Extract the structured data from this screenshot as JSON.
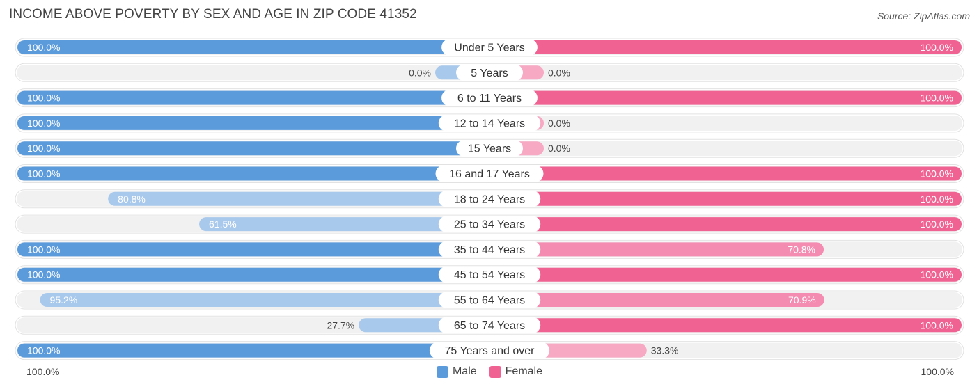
{
  "header": {
    "title": "INCOME ABOVE POVERTY BY SEX AND AGE IN ZIP CODE 41352",
    "source": "Source: ZipAtlas.com"
  },
  "axis": {
    "left_label": "100.0%",
    "right_label": "100.0%"
  },
  "legend": {
    "male_label": "Male",
    "female_label": "Female"
  },
  "colors": {
    "male_strong": "#5b9bdc",
    "male_light": "#a9c9ec",
    "female_strong": "#f06292",
    "female_light": "#f7a8c3",
    "track": "#f1f1f1"
  },
  "chart_data": {
    "type": "bar",
    "orientation": "diverging-horizontal",
    "categories": [
      "Under 5 Years",
      "5 Years",
      "6 to 11 Years",
      "12 to 14 Years",
      "15 Years",
      "16 and 17 Years",
      "18 to 24 Years",
      "25 to 34 Years",
      "35 to 44 Years",
      "45 to 54 Years",
      "55 to 64 Years",
      "65 to 74 Years",
      "75 Years and over"
    ],
    "series": [
      {
        "name": "Male",
        "values": [
          100.0,
          0.0,
          100.0,
          100.0,
          100.0,
          100.0,
          80.8,
          61.5,
          100.0,
          100.0,
          95.2,
          27.7,
          100.0
        ],
        "labels": [
          "100.0%",
          "0.0%",
          "100.0%",
          "100.0%",
          "100.0%",
          "100.0%",
          "80.8%",
          "61.5%",
          "100.0%",
          "100.0%",
          "95.2%",
          "27.7%",
          "100.0%"
        ]
      },
      {
        "name": "Female",
        "values": [
          100.0,
          0.0,
          100.0,
          0.0,
          0.0,
          100.0,
          100.0,
          100.0,
          70.8,
          100.0,
          70.9,
          100.0,
          33.3
        ],
        "labels": [
          "100.0%",
          "0.0%",
          "100.0%",
          "0.0%",
          "0.0%",
          "100.0%",
          "100.0%",
          "100.0%",
          "70.8%",
          "100.0%",
          "70.9%",
          "100.0%",
          "33.3%"
        ]
      }
    ],
    "xlim": [
      0,
      100
    ],
    "legend_position": "bottom-center"
  }
}
